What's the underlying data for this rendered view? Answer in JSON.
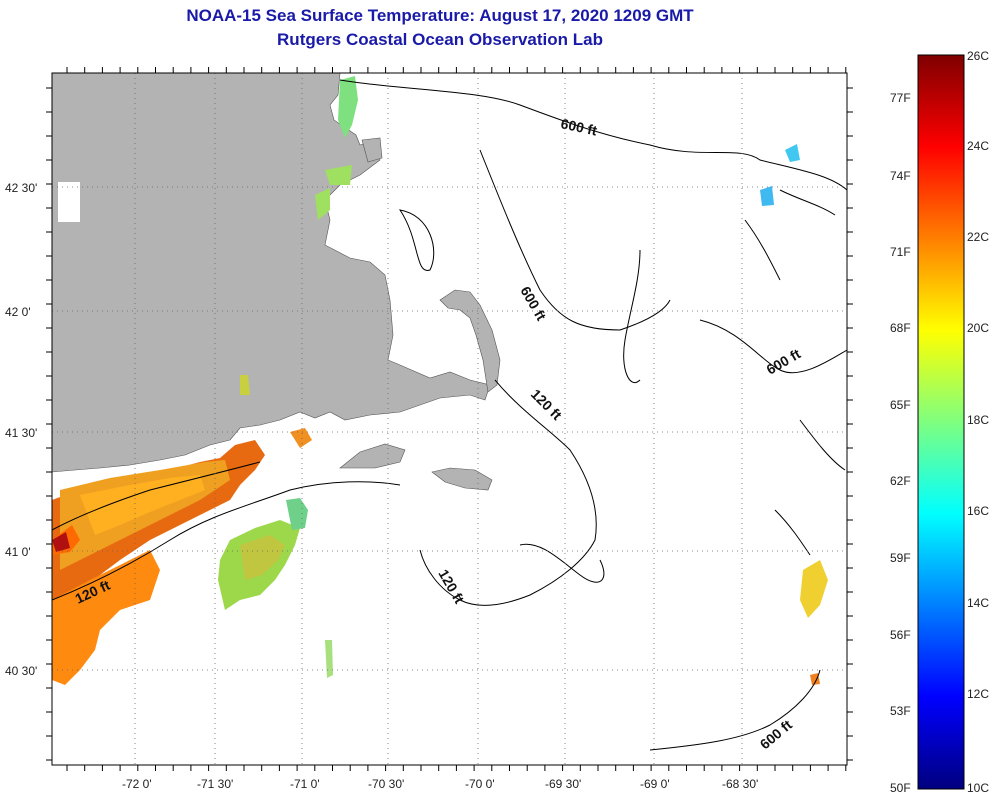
{
  "header": {
    "title": "NOAA-15 Sea Surface Temperature:  August 17, 2020 1209 GMT",
    "subtitle": "Rutgers Coastal Ocean Observation Lab"
  },
  "axes": {
    "longitude_labels": [
      "-72 0'",
      "-71 30'",
      "-71 0'",
      "-70 30'",
      "-70 0'",
      "-69 30'",
      "-69 0'",
      "-68 30'"
    ],
    "latitude_labels": [
      "42 30'",
      "42 0'",
      "41 30'",
      "41 0'",
      "40 30'"
    ]
  },
  "contours": {
    "labels": [
      "600 ft",
      "600 ft",
      "600 ft",
      "600 ft",
      "120 ft",
      "120 ft",
      "120 ft"
    ]
  },
  "colorbar": {
    "celsius_labels": [
      "26C",
      "24C",
      "22C",
      "20C",
      "18C",
      "16C",
      "14C",
      "12C",
      "10C"
    ],
    "fahrenheit_labels": [
      "77F",
      "74F",
      "71F",
      "68F",
      "65F",
      "62F",
      "59F",
      "56F",
      "53F",
      "50F"
    ],
    "colors": [
      "#00007f",
      "#0000ff",
      "#007fff",
      "#00ffff",
      "#7fff7f",
      "#ffff00",
      "#ff7f00",
      "#ff0000",
      "#7f0000"
    ]
  },
  "legend_colors": {
    "land": "#b3b3b3",
    "water": "#ffffff",
    "title": "#1a1aa8"
  }
}
